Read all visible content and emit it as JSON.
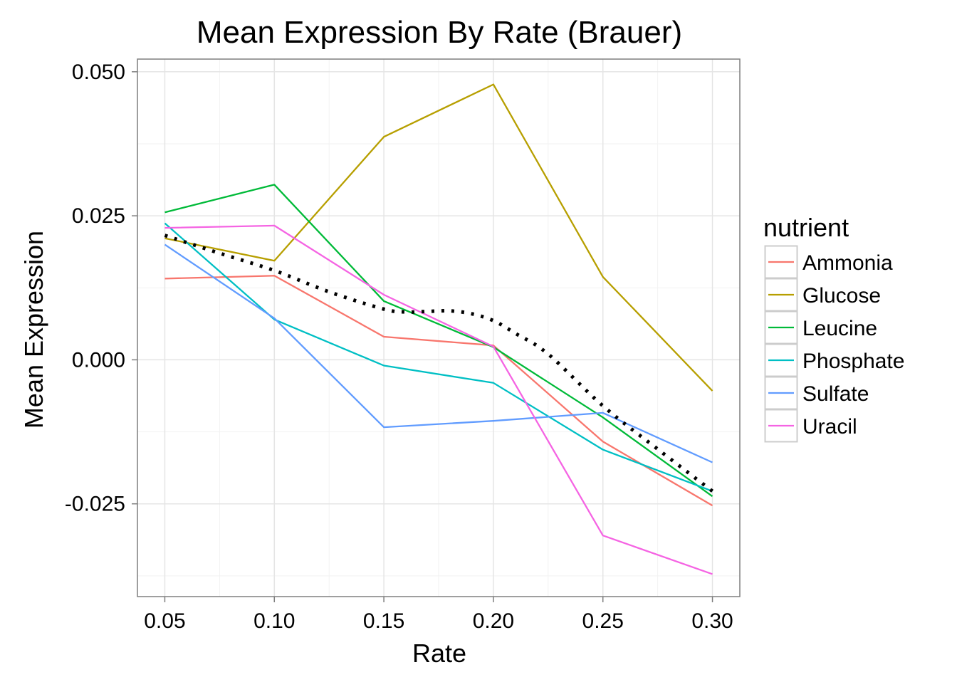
{
  "chart_data": {
    "type": "line",
    "title": "Mean Expression By Rate (Brauer)",
    "xlabel": "Rate",
    "ylabel": "Mean Expression",
    "x": [
      0.05,
      0.1,
      0.15,
      0.2,
      0.25,
      0.3
    ],
    "x_tick_labels": [
      "0.05",
      "0.10",
      "0.15",
      "0.20",
      "0.25",
      "0.30"
    ],
    "y_ticks": [
      -0.025,
      0.0,
      0.025,
      0.05
    ],
    "y_tick_labels": [
      "-0.025",
      "0.000",
      "0.025",
      "0.050"
    ],
    "xlim": [
      0.0375,
      0.3125
    ],
    "ylim": [
      -0.0411,
      0.0522
    ],
    "grid": true,
    "legend_title": "nutrient",
    "legend_position": "right",
    "series": [
      {
        "name": "Ammonia",
        "color": "#F8766D",
        "values": [
          0.0141,
          0.0146,
          0.004,
          0.0025,
          -0.0142,
          -0.0253
        ]
      },
      {
        "name": "Glucose",
        "color": "#B79F00",
        "values": [
          0.0211,
          0.0172,
          0.0387,
          0.0478,
          0.0144,
          -0.0054
        ]
      },
      {
        "name": "Leucine",
        "color": "#00BA38",
        "values": [
          0.0256,
          0.0304,
          0.0102,
          0.0022,
          -0.01,
          -0.0237
        ]
      },
      {
        "name": "Phosphate",
        "color": "#00BFC4",
        "values": [
          0.0237,
          0.007,
          -0.001,
          -0.004,
          -0.0156,
          -0.0228
        ]
      },
      {
        "name": "Sulfate",
        "color": "#619CFF",
        "values": [
          0.02,
          0.0072,
          -0.0117,
          -0.0106,
          -0.0092,
          -0.0178
        ]
      },
      {
        "name": "Uracil",
        "color": "#F564E3",
        "values": [
          0.0229,
          0.0233,
          0.0113,
          0.0023,
          -0.0305,
          -0.0372
        ]
      }
    ],
    "smooth": {
      "color": "#000000",
      "style": "dotted",
      "x": [
        0.05,
        0.075,
        0.1,
        0.125,
        0.15,
        0.16,
        0.17,
        0.18,
        0.19,
        0.2,
        0.21,
        0.225,
        0.25,
        0.275,
        0.3
      ],
      "values": [
        0.0216,
        0.0185,
        0.0155,
        0.0118,
        0.0088,
        0.0083,
        0.0084,
        0.0085,
        0.008,
        0.0068,
        0.0046,
        0.001,
        -0.008,
        -0.0155,
        -0.0228
      ]
    }
  }
}
